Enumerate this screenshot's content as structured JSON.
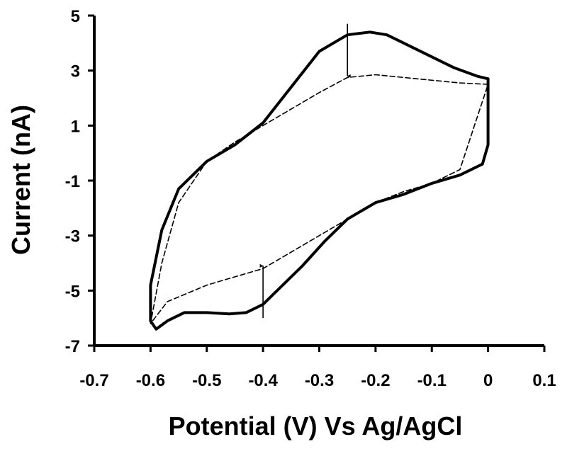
{
  "chart_data": {
    "type": "line",
    "title": "",
    "xlabel": "Potential (V) Vs Ag/AgCl",
    "ylabel": "Current (nA)",
    "xlim": [
      -0.7,
      0.1
    ],
    "ylim": [
      -7,
      5
    ],
    "xticks": [
      "-0.7",
      "-0.6",
      "-0.5",
      "-0.4",
      "-0.3",
      "-0.2",
      "-0.1",
      "0",
      "0.1"
    ],
    "yticks": [
      "5",
      "3",
      "1",
      "-1",
      "-3",
      "-5",
      "-7"
    ],
    "grid": false,
    "legend": "none",
    "series": [
      {
        "style": "solid",
        "color": "#000000",
        "x": [
          0.0,
          -0.02,
          -0.06,
          -0.1,
          -0.15,
          -0.18,
          -0.21,
          -0.25,
          -0.3,
          -0.35,
          -0.4,
          -0.45,
          -0.5,
          -0.55,
          -0.58,
          -0.6,
          -0.6,
          -0.59,
          -0.57,
          -0.54,
          -0.5,
          -0.46,
          -0.43,
          -0.4,
          -0.37,
          -0.33,
          -0.29,
          -0.25,
          -0.2,
          -0.15,
          -0.1,
          -0.05,
          -0.01,
          0.0,
          0.0
        ],
        "y": [
          2.7,
          2.8,
          3.1,
          3.5,
          4.0,
          4.3,
          4.4,
          4.3,
          3.7,
          2.4,
          1.1,
          0.3,
          -0.3,
          -1.3,
          -2.8,
          -4.8,
          -6.1,
          -6.4,
          -6.1,
          -5.8,
          -5.8,
          -5.85,
          -5.8,
          -5.5,
          -4.9,
          -4.1,
          -3.2,
          -2.4,
          -1.8,
          -1.5,
          -1.1,
          -0.8,
          -0.4,
          0.3,
          2.7
        ]
      },
      {
        "style": "dashed",
        "color": "#000000",
        "x": [
          0.0,
          -0.05,
          -0.1,
          -0.15,
          -0.2,
          -0.25,
          -0.3,
          -0.35,
          -0.4,
          -0.45,
          -0.5,
          -0.55,
          -0.58,
          -0.6,
          -0.57,
          -0.5,
          -0.45,
          -0.4,
          -0.35,
          -0.3,
          -0.25,
          -0.2,
          -0.15,
          -0.1,
          -0.05,
          0.0
        ],
        "y": [
          2.5,
          2.55,
          2.65,
          2.75,
          2.85,
          2.75,
          2.2,
          1.6,
          1.0,
          0.4,
          -0.3,
          -1.8,
          -4.0,
          -6.2,
          -5.4,
          -4.8,
          -4.5,
          -4.2,
          -3.6,
          -3.0,
          -2.4,
          -1.8,
          -1.4,
          -1.1,
          -0.6,
          2.5
        ]
      }
    ],
    "annotations": [
      {
        "type": "arrow",
        "direction": "down",
        "x": -0.25,
        "y_from": 4.7,
        "y_to": 2.8
      },
      {
        "type": "arrow",
        "direction": "up",
        "x": -0.4,
        "y_from": -6.0,
        "y_to": -4.1
      }
    ]
  }
}
